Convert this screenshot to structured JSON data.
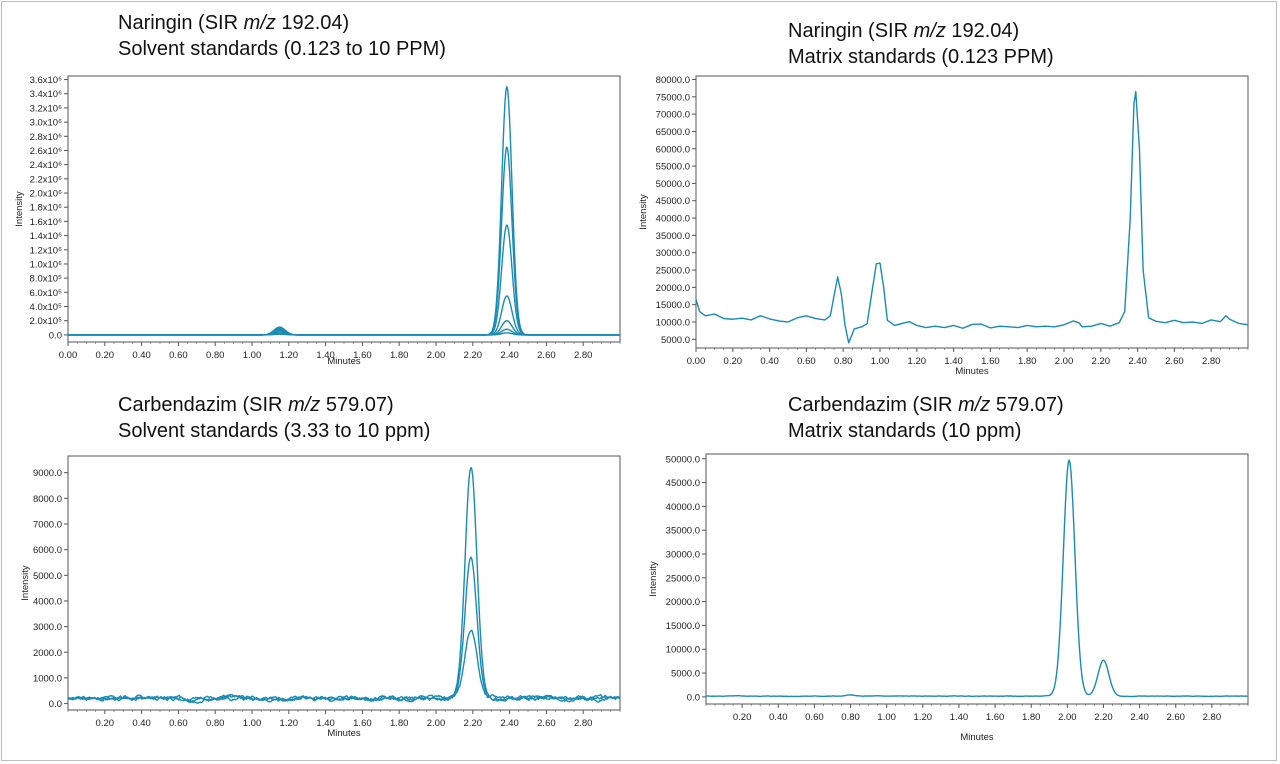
{
  "colors": {
    "trace": "#1a8bb4",
    "axis": "#555555",
    "tick_text": "#222222"
  },
  "panels": [
    {
      "title_pre": "Naringin (SIR ",
      "title_italic": "m/z",
      "title_post": " 192.04)",
      "subtitle": "Solvent standards (0.123 to 10 PPM)"
    },
    {
      "title_pre": "Naringin (SIR ",
      "title_italic": "m/z",
      "title_post": " 192.04)",
      "subtitle": "Matrix standards (0.123 PPM)"
    },
    {
      "title_pre": "Carbendazim (SIR ",
      "title_italic": "m/z",
      "title_post": " 579.07)",
      "subtitle": "Solvent standards (3.33 to 10 ppm)"
    },
    {
      "title_pre": "Carbendazim (SIR ",
      "title_italic": "m/z",
      "title_post": " 579.07)",
      "subtitle": "Matrix standards (10 ppm)"
    }
  ],
  "chart_data": [
    {
      "type": "line",
      "xlabel": "Minutes",
      "ylabel": "Intensity",
      "xlim": [
        0.0,
        3.0
      ],
      "ylim": [
        -100000,
        3650000
      ],
      "x_ticks": [
        0.0,
        0.2,
        0.4,
        0.6,
        0.8,
        1.0,
        1.2,
        1.4,
        1.6,
        1.8,
        2.0,
        2.2,
        2.4,
        2.6,
        2.8
      ],
      "x_tick_labels": [
        "0.00",
        "0.20",
        "0.40",
        "0.60",
        "0.80",
        "1.00",
        "1.20",
        "1.40",
        "1.60",
        "1.80",
        "2.00",
        "2.20",
        "2.40",
        "2.60",
        "2.80"
      ],
      "y_ticks": [
        0,
        200000,
        400000,
        600000,
        800000,
        1000000,
        1200000,
        1400000,
        1600000,
        1800000,
        2000000,
        2200000,
        2400000,
        2600000,
        2800000,
        3000000,
        3200000,
        3400000,
        3600000
      ],
      "y_tick_labels": [
        "0.0",
        "2.0x10⁵",
        "4.0x10⁵",
        "6.0x10⁵",
        "8.0x10⁵",
        "1.0x10⁶",
        "1.2x10⁶",
        "1.4x10⁶",
        "1.6x10⁶",
        "1.8x10⁶",
        "2.0x10⁶",
        "2.2x10⁶",
        "2.4x10⁶",
        "2.6x10⁶",
        "2.8x10⁶",
        "3.0x10⁶",
        "3.2x10⁶",
        "3.4x10⁶",
        "3.6x10⁶"
      ],
      "series": [
        {
          "peaks": [
            {
              "center": 1.15,
              "height": 10000,
              "width": 0.03
            },
            {
              "center": 2.385,
              "height": 30000,
              "width": 0.028
            }
          ],
          "baseline": 0
        },
        {
          "peaks": [
            {
              "center": 1.15,
              "height": 20000,
              "width": 0.03
            },
            {
              "center": 2.385,
              "height": 80000,
              "width": 0.028
            }
          ],
          "baseline": 0
        },
        {
          "peaks": [
            {
              "center": 1.15,
              "height": 40000,
              "width": 0.03
            },
            {
              "center": 2.385,
              "height": 200000,
              "width": 0.028
            }
          ],
          "baseline": 0
        },
        {
          "peaks": [
            {
              "center": 1.15,
              "height": 60000,
              "width": 0.03
            },
            {
              "center": 2.385,
              "height": 550000,
              "width": 0.028
            }
          ],
          "baseline": 0
        },
        {
          "peaks": [
            {
              "center": 1.15,
              "height": 80000,
              "width": 0.03
            },
            {
              "center": 2.385,
              "height": 1550000,
              "width": 0.028
            }
          ],
          "baseline": 0
        },
        {
          "peaks": [
            {
              "center": 1.15,
              "height": 100000,
              "width": 0.03
            },
            {
              "center": 2.385,
              "height": 2650000,
              "width": 0.028
            }
          ],
          "baseline": 0
        },
        {
          "peaks": [
            {
              "center": 1.15,
              "height": 110000,
              "width": 0.03
            },
            {
              "center": 2.385,
              "height": 3500000,
              "width": 0.028
            }
          ],
          "baseline": 0
        }
      ]
    },
    {
      "type": "line",
      "xlabel": "Minutes",
      "ylabel": "Intensity",
      "xlim": [
        0.0,
        3.0
      ],
      "ylim": [
        2500,
        81000
      ],
      "x_ticks": [
        0.0,
        0.2,
        0.4,
        0.6,
        0.8,
        1.0,
        1.2,
        1.4,
        1.6,
        1.8,
        2.0,
        2.2,
        2.4,
        2.6,
        2.8
      ],
      "x_tick_labels": [
        "0.00",
        "0.20",
        "0.40",
        "0.60",
        "0.80",
        "1.00",
        "1.20",
        "1.40",
        "1.60",
        "1.80",
        "2.00",
        "2.20",
        "2.40",
        "2.60",
        "2.80"
      ],
      "y_ticks": [
        5000,
        10000,
        15000,
        20000,
        25000,
        30000,
        35000,
        40000,
        45000,
        50000,
        55000,
        60000,
        65000,
        70000,
        75000,
        80000
      ],
      "y_tick_labels": [
        "5000.0",
        "10000.0",
        "15000.0",
        "20000.0",
        "25000.0",
        "30000.0",
        "35000.0",
        "40000.0",
        "45000.0",
        "50000.0",
        "55000.0",
        "60000.0",
        "65000.0",
        "70000.0",
        "75000.0",
        "80000.0"
      ],
      "series": [
        {
          "points": [
            [
              0.0,
              16500
            ],
            [
              0.02,
              13000
            ],
            [
              0.05,
              11800
            ],
            [
              0.1,
              12300
            ],
            [
              0.15,
              11000
            ],
            [
              0.2,
              10800
            ],
            [
              0.25,
              11100
            ],
            [
              0.3,
              10600
            ],
            [
              0.35,
              11800
            ],
            [
              0.4,
              10900
            ],
            [
              0.45,
              10300
            ],
            [
              0.5,
              10000
            ],
            [
              0.55,
              11200
            ],
            [
              0.6,
              11800
            ],
            [
              0.65,
              11000
            ],
            [
              0.7,
              10600
            ],
            [
              0.73,
              11800
            ],
            [
              0.75,
              17500
            ],
            [
              0.77,
              23000
            ],
            [
              0.79,
              18000
            ],
            [
              0.81,
              9000
            ],
            [
              0.83,
              4000
            ],
            [
              0.86,
              8000
            ],
            [
              0.9,
              8600
            ],
            [
              0.93,
              9500
            ],
            [
              0.96,
              20000
            ],
            [
              0.98,
              26800
            ],
            [
              1.0,
              27000
            ],
            [
              1.02,
              20000
            ],
            [
              1.04,
              10500
            ],
            [
              1.08,
              9000
            ],
            [
              1.12,
              9600
            ],
            [
              1.16,
              10100
            ],
            [
              1.2,
              9000
            ],
            [
              1.25,
              8400
            ],
            [
              1.3,
              8800
            ],
            [
              1.35,
              8400
            ],
            [
              1.4,
              9000
            ],
            [
              1.45,
              8200
            ],
            [
              1.5,
              9300
            ],
            [
              1.55,
              9400
            ],
            [
              1.6,
              8300
            ],
            [
              1.65,
              8800
            ],
            [
              1.7,
              8600
            ],
            [
              1.75,
              8400
            ],
            [
              1.8,
              9000
            ],
            [
              1.85,
              8600
            ],
            [
              1.9,
              8800
            ],
            [
              1.95,
              8600
            ],
            [
              2.0,
              9200
            ],
            [
              2.05,
              10300
            ],
            [
              2.08,
              9800
            ],
            [
              2.1,
              8600
            ],
            [
              2.15,
              8800
            ],
            [
              2.2,
              9600
            ],
            [
              2.25,
              8800
            ],
            [
              2.3,
              9800
            ],
            [
              2.33,
              13000
            ],
            [
              2.36,
              40000
            ],
            [
              2.38,
              73000
            ],
            [
              2.39,
              76500
            ],
            [
              2.41,
              60000
            ],
            [
              2.43,
              25000
            ],
            [
              2.46,
              11200
            ],
            [
              2.5,
              10200
            ],
            [
              2.55,
              9800
            ],
            [
              2.6,
              10500
            ],
            [
              2.65,
              9800
            ],
            [
              2.7,
              10000
            ],
            [
              2.75,
              9600
            ],
            [
              2.8,
              10600
            ],
            [
              2.85,
              10100
            ],
            [
              2.88,
              11800
            ],
            [
              2.9,
              10800
            ],
            [
              2.95,
              9600
            ],
            [
              3.0,
              9200
            ]
          ]
        }
      ]
    },
    {
      "type": "line",
      "xlabel": "Minutes",
      "ylabel": "Intensity",
      "xlim": [
        0.0,
        3.0
      ],
      "ylim": [
        -250,
        9650
      ],
      "x_ticks": [
        0.2,
        0.4,
        0.6,
        0.8,
        1.0,
        1.2,
        1.4,
        1.6,
        1.8,
        2.0,
        2.2,
        2.4,
        2.6,
        2.8
      ],
      "x_tick_labels": [
        "0.20",
        "0.40",
        "0.60",
        "0.80",
        "1.00",
        "1.20",
        "1.40",
        "1.60",
        "1.80",
        "2.00",
        "2.20",
        "2.40",
        "2.60",
        "2.80"
      ],
      "y_ticks": [
        0,
        1000,
        2000,
        3000,
        4000,
        5000,
        6000,
        7000,
        8000,
        9000
      ],
      "y_tick_labels": [
        "0.0",
        "1000.0",
        "2000.0",
        "3000.0",
        "4000.0",
        "5000.0",
        "6000.0",
        "7000.0",
        "8000.0",
        "9000.0"
      ],
      "series": [
        {
          "peaks": [
            {
              "center": 2.19,
              "height": 2700,
              "width": 0.032
            }
          ],
          "baseline": 200,
          "noise": 90,
          "seed": 3
        },
        {
          "peaks": [
            {
              "center": 2.19,
              "height": 5500,
              "width": 0.032
            }
          ],
          "baseline": 220,
          "noise": 90,
          "seed": 7
        },
        {
          "peaks": [
            {
              "center": 2.19,
              "height": 9050,
              "width": 0.032
            }
          ],
          "baseline": 210,
          "noise": 90,
          "seed": 11
        }
      ]
    },
    {
      "type": "line",
      "xlabel": "Minutes",
      "ylabel": "Intensity",
      "xlim": [
        0.0,
        3.0
      ],
      "ylim": [
        -1500,
        51000
      ],
      "x_ticks": [
        0.2,
        0.4,
        0.6,
        0.8,
        1.0,
        1.2,
        1.4,
        1.6,
        1.8,
        2.0,
        2.2,
        2.4,
        2.6,
        2.8
      ],
      "x_tick_labels": [
        "0.20",
        "0.40",
        "0.60",
        "0.80",
        "1.00",
        "1.20",
        "1.40",
        "1.60",
        "1.80",
        "2.00",
        "2.20",
        "2.40",
        "2.60",
        "2.80"
      ],
      "y_ticks": [
        0,
        5000,
        10000,
        15000,
        20000,
        25000,
        30000,
        35000,
        40000,
        45000,
        50000
      ],
      "y_tick_labels": [
        "0.0",
        "5000.0",
        "10000.0",
        "15000.0",
        "20000.0",
        "25000.0",
        "30000.0",
        "35000.0",
        "40000.0",
        "45000.0",
        "50000.0"
      ],
      "series": [
        {
          "peaks": [
            {
              "center": 2.01,
              "height": 49600,
              "width": 0.032
            },
            {
              "center": 2.2,
              "height": 7500,
              "width": 0.03
            },
            {
              "center": 0.8,
              "height": 250,
              "width": 0.02
            }
          ],
          "baseline": 150,
          "noise": 60,
          "seed": 5
        }
      ]
    }
  ]
}
